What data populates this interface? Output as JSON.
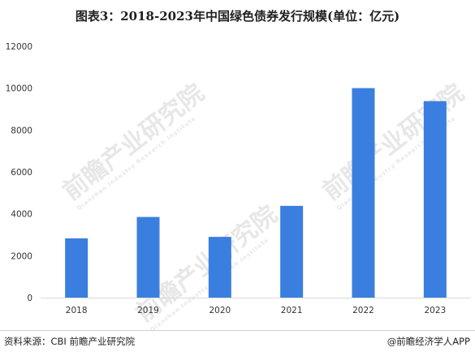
{
  "chart_data": {
    "type": "bar",
    "title": "图表3：2018-2023年中国绿色债券发行规模(单位：亿元)",
    "categories": [
      "2018",
      "2019",
      "2020",
      "2021",
      "2022",
      "2023"
    ],
    "values": [
      2830,
      3850,
      2900,
      4380,
      10000,
      9380
    ],
    "ylim": [
      0,
      12000
    ],
    "yticks": [
      "12000",
      "10000",
      "8000",
      "6000",
      "4000",
      "2000",
      "0"
    ],
    "grid": false,
    "bar_color": "#3a7fe0"
  },
  "footer": {
    "source": "资料来源：CBI 前瞻产业研究院",
    "brand": "@前瞻经济学人APP"
  },
  "watermark": {
    "text": "前瞻产业研究院",
    "subtext": "Qianzhan Industry Research Institute"
  }
}
